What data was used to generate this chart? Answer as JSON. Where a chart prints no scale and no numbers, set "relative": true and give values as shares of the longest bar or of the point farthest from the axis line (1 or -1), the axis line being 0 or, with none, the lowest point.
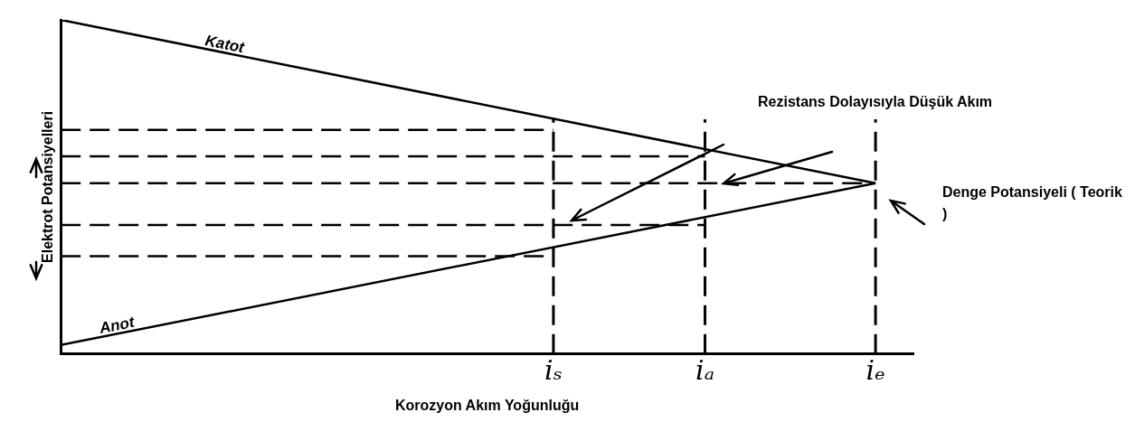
{
  "chart_data": {
    "type": "line",
    "relative": true,
    "xlabel": "Korozyon Akım Yoğunluğu",
    "ylabel": "Elektrot Potansiyelleri",
    "categories": [
      null,
      null,
      null,
      null,
      null,
      null,
      null,
      null,
      null,
      null,
      null,
      null,
      null,
      null,
      null,
      null,
      null,
      null,
      null,
      null,
      null,
      null,
      null,
      null,
      null,
      null,
      "iₛ",
      null,
      null,
      null,
      null,
      null,
      null,
      null,
      "iₐ",
      null,
      null,
      null,
      null,
      null,
      null,
      null,
      null,
      "iₑ",
      null,
      null
    ],
    "series": [
      {
        "name": "Katot",
        "color": "#000000",
        "line_style": "solid",
        "values": [
          1,
          null,
          null,
          null,
          null,
          null,
          null,
          null,
          null,
          null,
          null,
          null,
          null,
          null,
          null,
          null,
          null,
          null,
          null,
          null,
          null,
          null,
          null,
          null,
          null,
          null,
          null,
          null,
          null,
          null,
          null,
          null,
          null,
          null,
          null,
          null,
          null,
          null,
          null,
          null,
          null,
          null,
          null,
          0.511,
          null,
          null
        ]
      },
      {
        "name": "Anot",
        "color": "#000000",
        "line_style": "solid",
        "values": [
          0.027,
          null,
          null,
          null,
          null,
          null,
          null,
          null,
          null,
          null,
          null,
          null,
          null,
          null,
          null,
          null,
          null,
          null,
          null,
          null,
          null,
          null,
          null,
          null,
          null,
          null,
          null,
          null,
          null,
          null,
          null,
          null,
          null,
          null,
          null,
          null,
          null,
          null,
          null,
          null,
          null,
          null,
          null,
          0.511,
          null,
          null
        ]
      },
      {
        "color": "#000000",
        "line_style": "dashed",
        "values": [
          0.671,
          null,
          null,
          null,
          null,
          null,
          null,
          null,
          null,
          null,
          null,
          null,
          null,
          null,
          null,
          null,
          null,
          null,
          null,
          null,
          null,
          null,
          null,
          null,
          null,
          null,
          0.671,
          null,
          null,
          null,
          null,
          null,
          null,
          null,
          null,
          null,
          null,
          null,
          null,
          null,
          null,
          null,
          null,
          null,
          null,
          null
        ]
      },
      {
        "color": "#000000",
        "line_style": "dashed",
        "values": [
          0.592,
          null,
          null,
          null,
          null,
          null,
          null,
          null,
          null,
          null,
          null,
          null,
          null,
          null,
          null,
          null,
          null,
          null,
          null,
          null,
          null,
          null,
          null,
          null,
          null,
          null,
          null,
          null,
          null,
          null,
          null,
          null,
          null,
          null,
          0.592,
          null,
          null,
          null,
          null,
          null,
          null,
          null,
          null,
          null,
          null,
          null
        ]
      },
      {
        "color": "#000000",
        "line_style": "dashed",
        "values": [
          0.511,
          null,
          null,
          null,
          null,
          null,
          null,
          null,
          null,
          null,
          null,
          null,
          null,
          null,
          null,
          null,
          null,
          null,
          null,
          null,
          null,
          null,
          null,
          null,
          null,
          null,
          null,
          null,
          null,
          null,
          null,
          null,
          null,
          null,
          null,
          null,
          null,
          null,
          null,
          null,
          null,
          null,
          null,
          0.511,
          null,
          null
        ]
      },
      {
        "color": "#000000",
        "line_style": "dashed",
        "values": [
          0.386,
          null,
          null,
          null,
          null,
          null,
          null,
          null,
          null,
          null,
          null,
          null,
          null,
          null,
          null,
          null,
          null,
          null,
          null,
          null,
          null,
          null,
          null,
          null,
          null,
          null,
          null,
          null,
          null,
          null,
          null,
          null,
          null,
          null,
          0.386,
          null,
          null,
          null,
          null,
          null,
          null,
          null,
          null,
          null,
          null,
          null
        ]
      },
      {
        "color": "#000000",
        "line_style": "dashed",
        "values": [
          0.293,
          null,
          null,
          null,
          null,
          null,
          null,
          null,
          null,
          null,
          null,
          null,
          null,
          null,
          null,
          null,
          null,
          null,
          null,
          null,
          null,
          null,
          null,
          null,
          null,
          null,
          0.293,
          null,
          null,
          null,
          null,
          null,
          null,
          null,
          null,
          null,
          null,
          null,
          null,
          null,
          null,
          null,
          null,
          null,
          null,
          null
        ]
      }
    ],
    "ref_lines": [
      {
        "axis": "x",
        "value": "iₛ",
        "line_style": "dashed"
      },
      {
        "axis": "x",
        "value": "iₐ",
        "line_style": "dashed"
      },
      {
        "axis": "x",
        "value": "iₑ",
        "line_style": "dashed"
      }
    ],
    "annotations": [
      "Rezistans Dolayısıyla Düşük Akım",
      "Denge Potansiyeli ( Teorik )"
    ],
    "legend": false,
    "grid": false,
    "marker": "none"
  }
}
